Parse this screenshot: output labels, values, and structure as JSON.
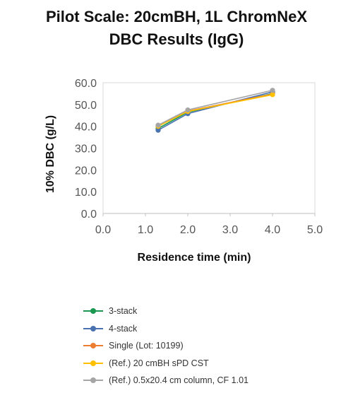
{
  "chart_data": {
    "type": "line",
    "title": "Pilot Scale: 20cmBH, 1L ChromNeX DBC Results (IgG)",
    "title_lines": [
      "Pilot Scale: 20cmBH, 1L ChromNeX",
      "DBC Results (IgG)"
    ],
    "xlabel": "Residence time (min)",
    "ylabel": "10% DBC (g/L)",
    "xlim": [
      0,
      5
    ],
    "ylim": [
      0,
      60
    ],
    "x_ticks": [
      "0.0",
      "1.0",
      "2.0",
      "3.0",
      "4.0",
      "5.0"
    ],
    "y_ticks": [
      "0.0",
      "10.0",
      "20.0",
      "30.0",
      "40.0",
      "50.0",
      "60.0"
    ],
    "grid": false,
    "legend_position": "bottom",
    "series": [
      {
        "name": "3-stack",
        "color": "#1a9850",
        "x": [
          1.3,
          2.0,
          4.0
        ],
        "y": [
          39.0,
          46.5,
          55.0
        ]
      },
      {
        "name": "4-stack",
        "color": "#4a72b0",
        "x": [
          1.3,
          2.0,
          4.0
        ],
        "y": [
          38.2,
          45.8,
          55.8
        ]
      },
      {
        "name": "Single (Lot: 10199)",
        "color": "#ed7d31",
        "x": [
          1.3,
          2.0,
          4.0
        ],
        "y": [
          40.2,
          47.0,
          54.8
        ]
      },
      {
        "name": "(Ref.) 20 cmBH sPD CST",
        "color": "#ffc000",
        "x": [
          1.3,
          2.0,
          4.0
        ],
        "y": [
          40.0,
          46.8,
          54.5
        ]
      },
      {
        "name": "(Ref.) 0.5x20.4 cm column, CF 1.01",
        "color": "#a5a5a5",
        "x": [
          1.3,
          2.0,
          4.0
        ],
        "y": [
          40.5,
          47.5,
          56.5
        ]
      }
    ]
  }
}
